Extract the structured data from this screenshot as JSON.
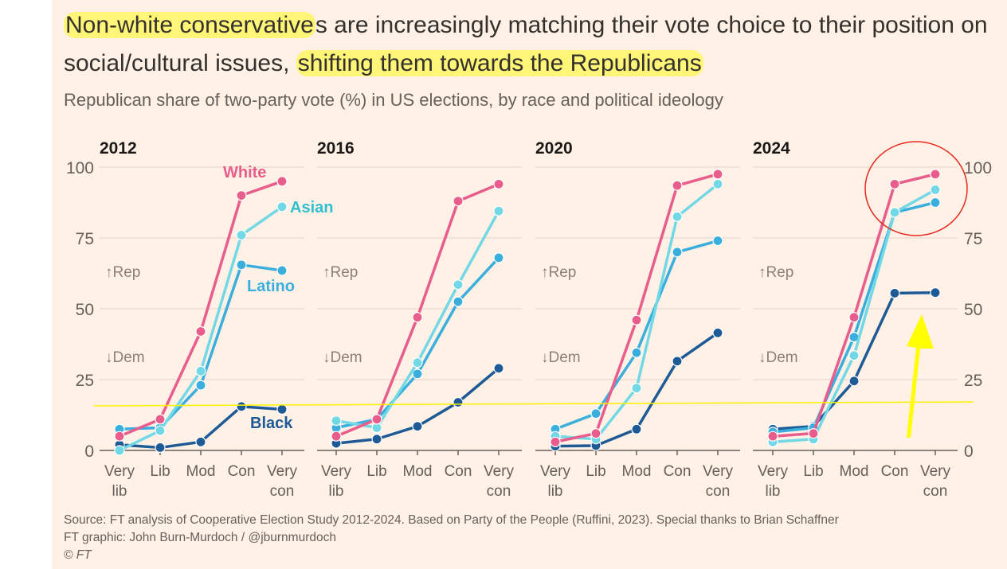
{
  "title": {
    "highlight1": "Non-white conservative",
    "part2": "s are increasingly matching their vote choice to their position on social/cultural issues, ",
    "highlight2": "shifting them towards the Republicans"
  },
  "subtitle": "Republican share of two-party vote (%) in US elections, by race and political ideology",
  "footer": {
    "source": "Source: FT analysis of Cooperative Election Study 2012-2024. Based on Party of the People (Ruffini, 2023). Special thanks to Brian Schaffner",
    "credit": "FT graphic: John Burn-Murdoch / @jburnmurdoch",
    "copyright": "© FT"
  },
  "chart_data": {
    "type": "line",
    "ylim": [
      0,
      100
    ],
    "yticks": [
      "0",
      "25",
      "50",
      "75",
      "100"
    ],
    "categories": [
      [
        "Very",
        "lib"
      ],
      [
        "Lib"
      ],
      [
        "Mod"
      ],
      [
        "Con"
      ],
      [
        "Very",
        "con"
      ]
    ],
    "rep_label": "↑Rep",
    "dem_label": "↓Dem",
    "grid": true,
    "colors": {
      "White": "#E95D8C",
      "Asian": "#72D8E6",
      "Latino": "#3AAEDD",
      "Black": "#1E5A96"
    },
    "series_labels": [
      {
        "name": "White",
        "panel": "2012"
      },
      {
        "name": "Asian",
        "panel": "2012"
      },
      {
        "name": "Latino",
        "panel": "2012"
      },
      {
        "name": "Black",
        "panel": "2012"
      }
    ],
    "panels": [
      {
        "year": "2012",
        "series": {
          "White": [
            5,
            11,
            42,
            90,
            95
          ],
          "Asian": [
            0,
            7,
            28,
            76,
            86
          ],
          "Latino": [
            7.5,
            8,
            23,
            65.5,
            63.5
          ],
          "Black": [
            2,
            1,
            3,
            15.5,
            14.5
          ]
        }
      },
      {
        "year": "2016",
        "series": {
          "White": [
            5,
            11,
            47,
            88,
            94
          ],
          "Asian": [
            10.5,
            8,
            31,
            58.5,
            84.5
          ],
          "Latino": [
            8,
            11,
            27,
            52.5,
            68
          ],
          "Black": [
            2.5,
            4,
            8.5,
            17,
            29
          ]
        }
      },
      {
        "year": "2020",
        "series": {
          "White": [
            3,
            6,
            46,
            93.5,
            97.5
          ],
          "Asian": [
            5,
            4,
            22,
            82.5,
            94
          ],
          "Latino": [
            7.5,
            13,
            34.5,
            70,
            74
          ],
          "Black": [
            1.5,
            1.7,
            7.5,
            31.5,
            41.5
          ]
        }
      },
      {
        "year": "2024",
        "series": {
          "White": [
            5,
            6,
            47,
            94,
            97.5
          ],
          "Asian": [
            3,
            4,
            33.5,
            84,
            92
          ],
          "Latino": [
            6.5,
            8,
            40,
            84,
            87.5
          ],
          "Black": [
            7.5,
            8.5,
            24.5,
            55.5,
            55.7
          ]
        }
      }
    ]
  },
  "annotations": {
    "highlight_color": "#FFF550",
    "line_color": "#FFF200",
    "circle_color": "#E8281E",
    "arrow_color": "#FFFF00"
  }
}
